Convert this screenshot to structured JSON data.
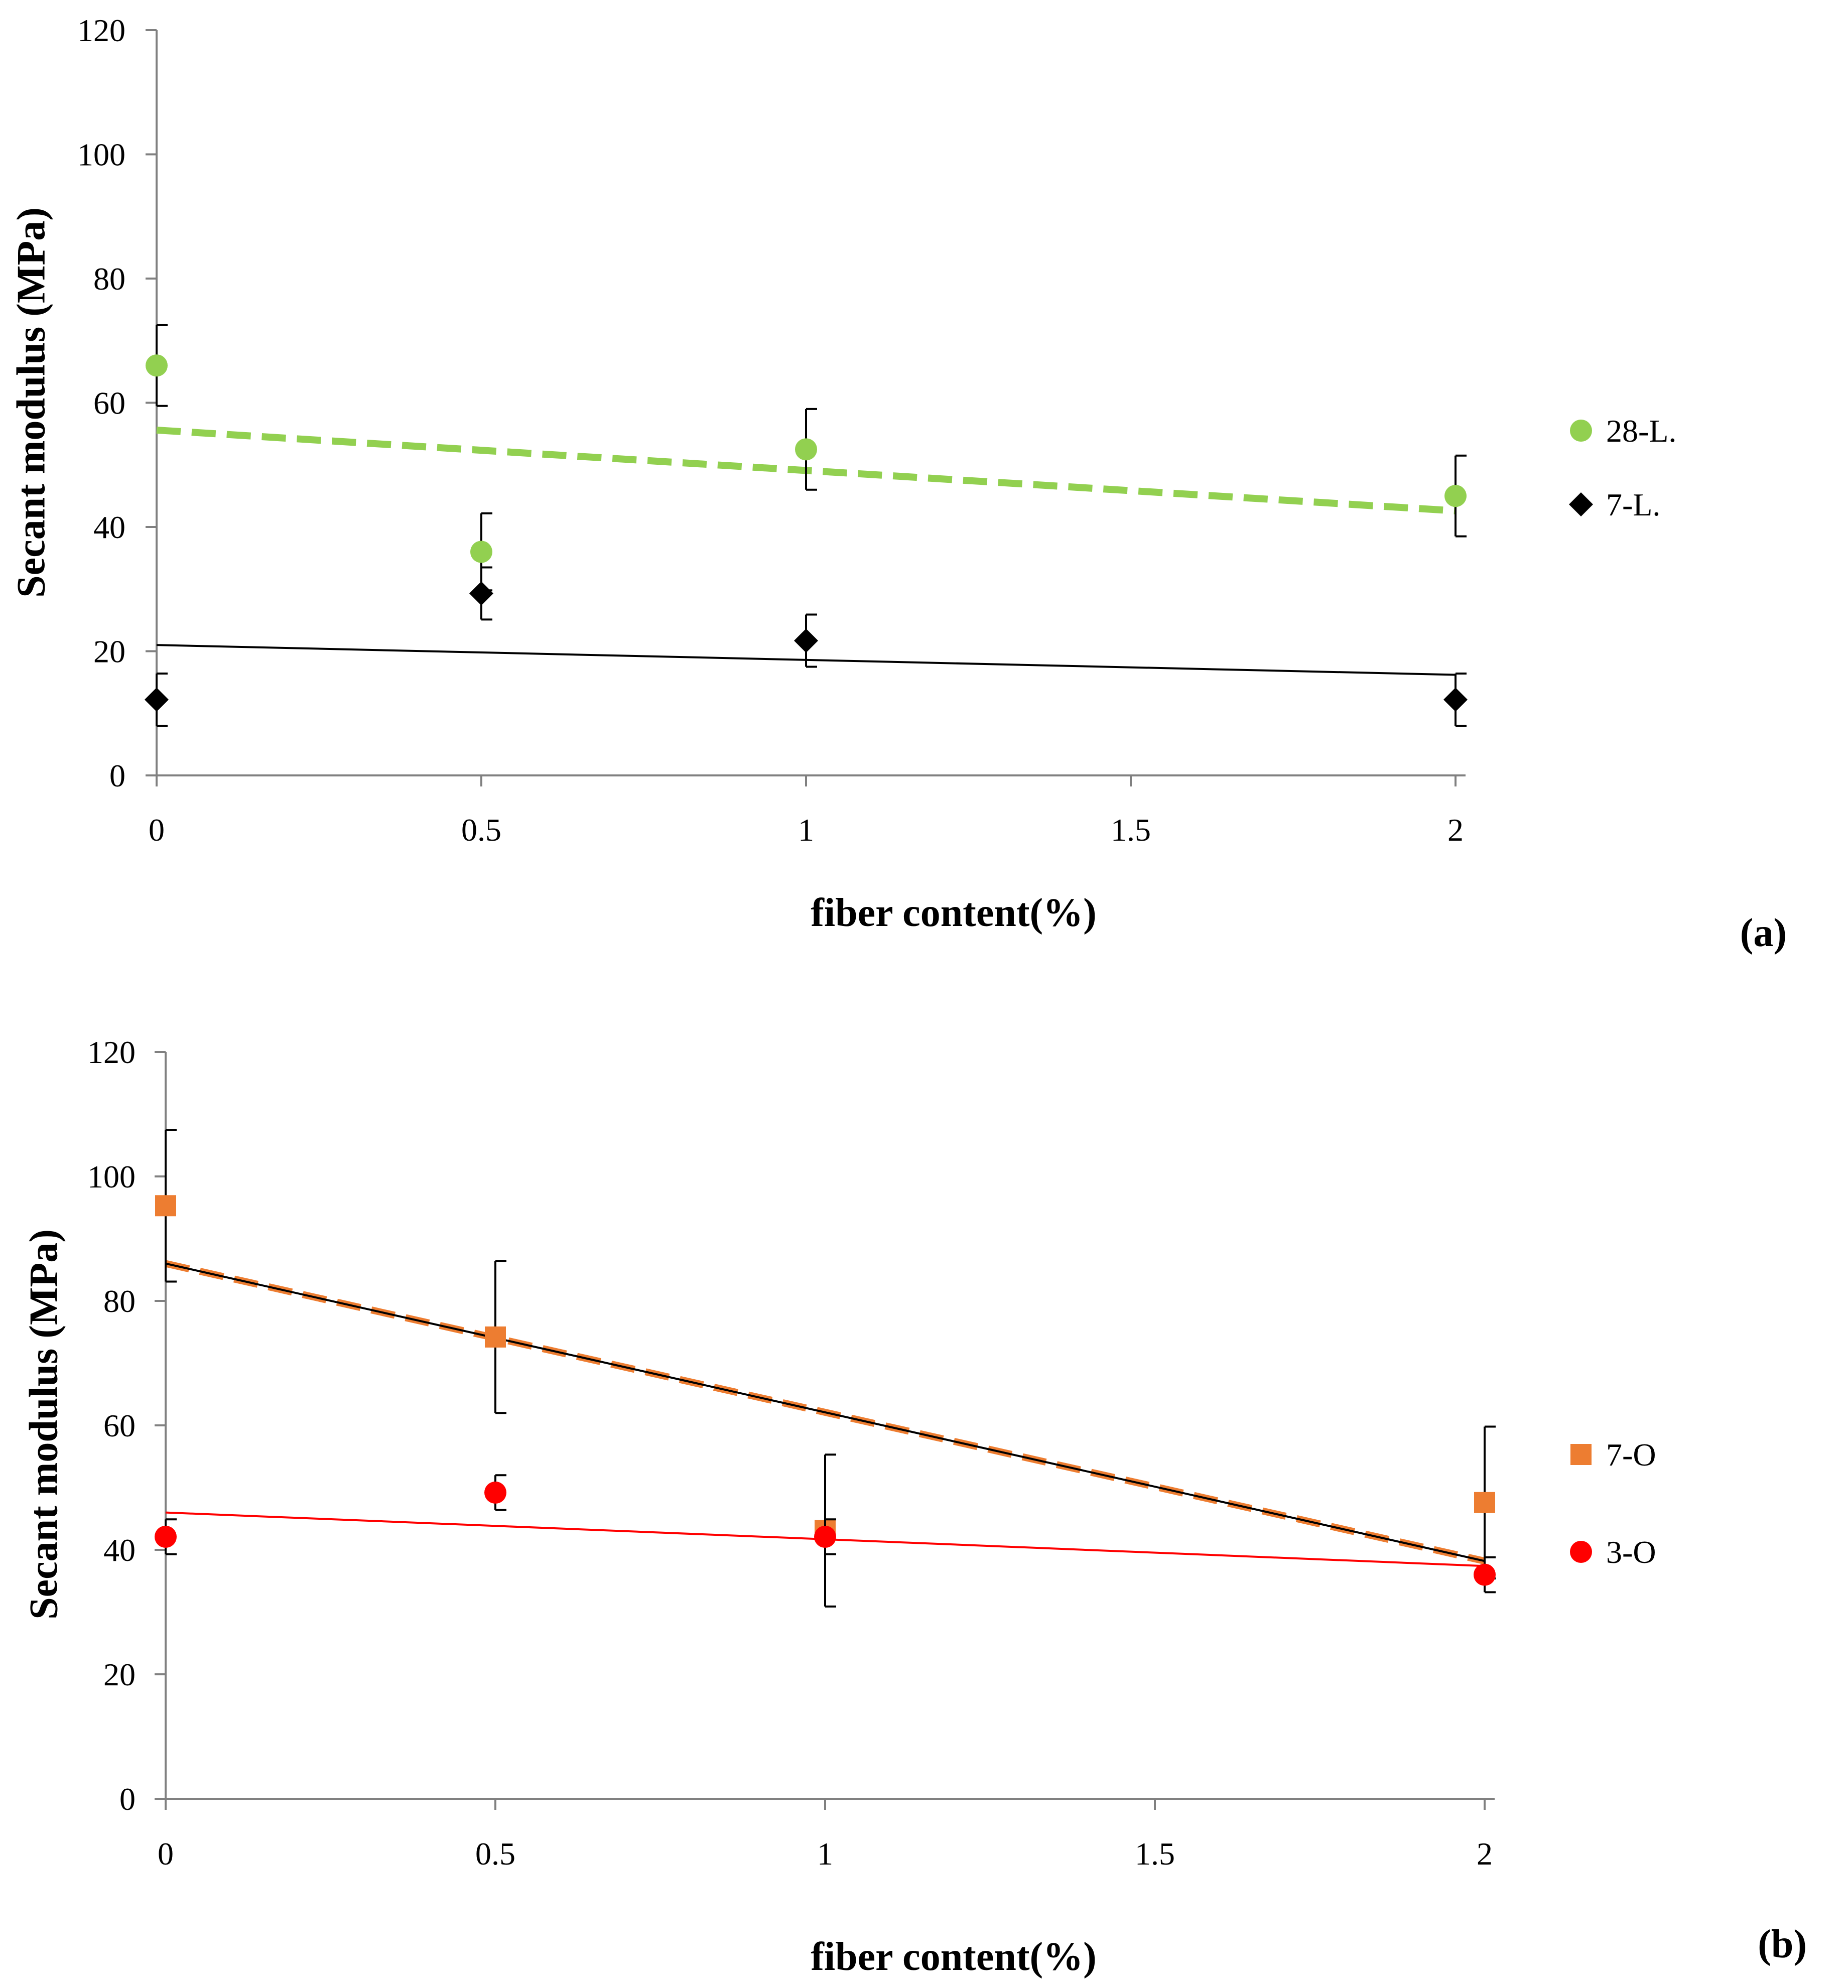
{
  "chart_data": [
    {
      "type": "scatter",
      "panel_label": "(a)",
      "xlabel": "fiber content(%)",
      "ylabel": "Secant modulus (MPa)",
      "xlim": [
        0,
        2
      ],
      "ylim": [
        0,
        120
      ],
      "x_ticks": [
        "0",
        "0.5",
        "1",
        "1.5",
        "2"
      ],
      "y_ticks": [
        "0",
        "20",
        "40",
        "60",
        "80",
        "100",
        "120"
      ],
      "legend_position": "right",
      "series": [
        {
          "name": "28-L.",
          "marker": "circle",
          "color": "#92D050",
          "x": [
            0,
            0.5,
            1,
            2
          ],
          "y": [
            66,
            36,
            52.5,
            45
          ],
          "err": [
            6.5,
            6.2,
            6.5,
            6.5
          ],
          "trendline": {
            "style": "dashed",
            "color": "#92D050",
            "x": [
              0,
              2
            ],
            "y": [
              55.6,
              42.6
            ]
          }
        },
        {
          "name": "7-L.",
          "marker": "diamond",
          "color": "#000000",
          "x": [
            0,
            0.5,
            1,
            2
          ],
          "y": [
            12.2,
            29.3,
            21.7,
            12.2
          ],
          "err": [
            4.2,
            4.2,
            4.2,
            4.2
          ],
          "trendline": {
            "style": "solid",
            "color": "#000000",
            "x": [
              0,
              2
            ],
            "y": [
              21,
              16.2
            ]
          }
        }
      ]
    },
    {
      "type": "scatter",
      "panel_label": "(b)",
      "xlabel": "fiber content(%)",
      "ylabel": "Secant modulus (MPa)",
      "xlim": [
        0,
        2
      ],
      "ylim": [
        0,
        120
      ],
      "x_ticks": [
        "0",
        "0.5",
        "1",
        "1.5",
        "2"
      ],
      "y_ticks": [
        "0",
        "20",
        "40",
        "60",
        "80",
        "100",
        "120"
      ],
      "legend_position": "right",
      "series": [
        {
          "name": "7-O",
          "marker": "square",
          "color": "#ED7D31",
          "x": [
            0,
            0.5,
            1,
            2
          ],
          "y": [
            95.3,
            74.2,
            43.1,
            47.6
          ],
          "err": [
            12.2,
            12.2,
            12.2,
            12.2
          ],
          "trendline": {
            "style": "dashed",
            "color": "#ED7D31",
            "x": [
              0,
              2
            ],
            "y": [
              86,
              38.2
            ]
          }
        },
        {
          "name": "3-O",
          "marker": "circle",
          "color": "#FF0000",
          "x": [
            0,
            0.5,
            1,
            2
          ],
          "y": [
            42.1,
            49.2,
            42.1,
            36
          ],
          "err": [
            2.8,
            2.8,
            2.8,
            2.8
          ],
          "trendline": {
            "style": "solid",
            "color": "#FF0000",
            "x": [
              0,
              2
            ],
            "y": [
              46,
              37.4
            ]
          }
        }
      ],
      "extra_lines": [
        {
          "style": "solid",
          "color": "#000000",
          "x": [
            0,
            2
          ],
          "y": [
            86,
            38.2
          ]
        }
      ]
    }
  ]
}
